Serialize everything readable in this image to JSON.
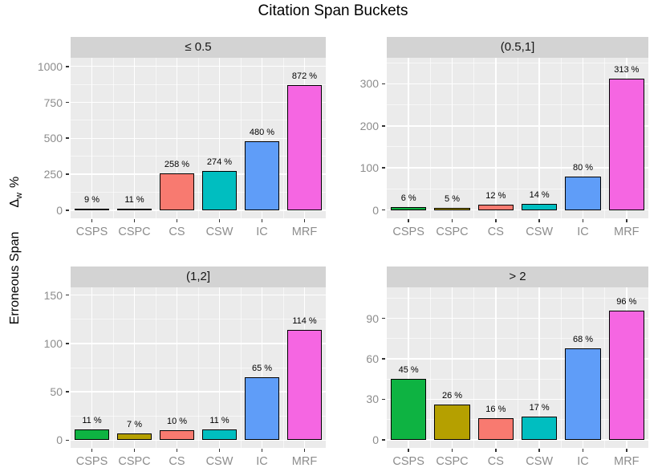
{
  "title": "Citation Span Buckets",
  "y_axis_label": {
    "text": "Erroneous Span",
    "delta": "Δ",
    "delta_sub": "w",
    "unit": "%"
  },
  "colors": {
    "panel_bg": "#ebebeb",
    "strip_bg": "#d3d3d3",
    "grid_major": "#ffffff",
    "axis_text": "#8c8c8c",
    "tick_mark": "#333333",
    "bar_outline": "#000000"
  },
  "chart_data": {
    "type": "bar",
    "layout": "2x2 facet grid, grey panels with white gridlines, no legend",
    "title": "Citation Span Buckets",
    "ylabel": "Erroneous Span  Δw %",
    "categories": [
      "CSPS",
      "CSPC",
      "CS",
      "CSW",
      "IC",
      "MRF"
    ],
    "bar_colors": [
      "#0eb342",
      "#b5a000",
      "#f87a70",
      "#00bec0",
      "#5f9df8",
      "#f566e2"
    ],
    "facets": [
      {
        "label": "≤ 0.5",
        "values": [
          9,
          11,
          258,
          274,
          480,
          872
        ],
        "value_labels": [
          "9 %",
          "11 %",
          "258 %",
          "274 %",
          "480 %",
          "872 %"
        ],
        "yticks": [
          0,
          250,
          500,
          750,
          1000
        ],
        "ylim": [
          -57,
          1060
        ]
      },
      {
        "label": "(0.5,1]",
        "values": [
          6,
          5,
          12,
          14,
          80,
          313
        ],
        "value_labels": [
          "6 %",
          "5 %",
          "12 %",
          "14 %",
          "80 %",
          "313 %"
        ],
        "yticks": [
          0,
          100,
          200,
          300
        ],
        "ylim": [
          -20,
          362
        ]
      },
      {
        "label": "(1,2]",
        "values": [
          11,
          7,
          10,
          11,
          65,
          114
        ],
        "value_labels": [
          "11 %",
          "7 %",
          "10 %",
          "11 %",
          "65 %",
          "114 %"
        ],
        "yticks": [
          0,
          50,
          100,
          150
        ],
        "ylim": [
          -8,
          158
        ]
      },
      {
        "label": "> 2",
        "values": [
          45,
          26,
          16,
          17,
          68,
          96
        ],
        "value_labels": [
          "45 %",
          "26 %",
          "16 %",
          "17 %",
          "68 %",
          "96 %"
        ],
        "yticks": [
          0,
          30,
          60,
          90
        ],
        "ylim": [
          -6,
          113
        ]
      }
    ]
  }
}
